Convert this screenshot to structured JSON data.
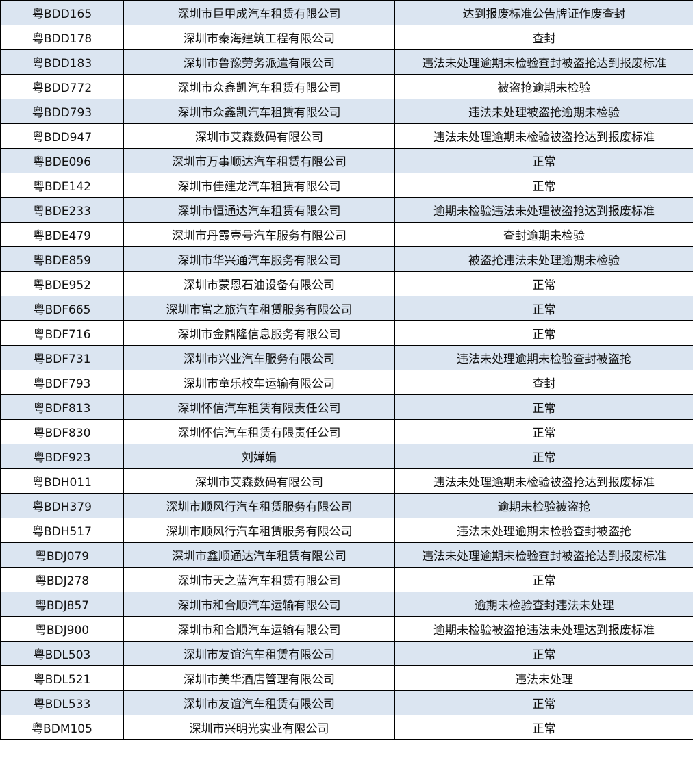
{
  "table": {
    "rows": [
      [
        "粤BDD165",
        "深圳市巨甲成汽车租赁有限公司",
        "达到报废标准公告牌证作废查封"
      ],
      [
        "粤BDD178",
        "深圳市秦海建筑工程有限公司",
        "查封"
      ],
      [
        "粤BDD183",
        "深圳市鲁豫劳务派遣有限公司",
        "违法未处理逾期未检验查封被盗抢达到报废标准"
      ],
      [
        "粤BDD772",
        "深圳市众鑫凯汽车租赁有限公司",
        "被盗抢逾期未检验"
      ],
      [
        "粤BDD793",
        "深圳市众鑫凯汽车租赁有限公司",
        "违法未处理被盗抢逾期未检验"
      ],
      [
        "粤BDD947",
        "深圳市艾森数码有限公司",
        "违法未处理逾期未检验被盗抢达到报废标准"
      ],
      [
        "粤BDE096",
        "深圳市万事顺达汽车租赁有限公司",
        "正常"
      ],
      [
        "粤BDE142",
        "深圳市佳建龙汽车租赁有限公司",
        "正常"
      ],
      [
        "粤BDE233",
        "深圳市恒通达汽车租赁有限公司",
        "逾期未检验违法未处理被盗抢达到报废标准"
      ],
      [
        "粤BDE479",
        "深圳市丹霞壹号汽车服务有限公司",
        "查封逾期未检验"
      ],
      [
        "粤BDE859",
        "深圳市华兴通汽车服务有限公司",
        "被盗抢违法未处理逾期未检验"
      ],
      [
        "粤BDE952",
        "深圳市蒙恩石油设备有限公司",
        "正常"
      ],
      [
        "粤BDF665",
        "深圳市富之旅汽车租赁服务有限公司",
        "正常"
      ],
      [
        "粤BDF716",
        "深圳市金鼎隆信息服务有限公司",
        "正常"
      ],
      [
        "粤BDF731",
        "深圳市兴业汽车服务有限公司",
        "违法未处理逾期未检验查封被盗抢"
      ],
      [
        "粤BDF793",
        "深圳市童乐校车运输有限公司",
        "查封"
      ],
      [
        "粤BDF813",
        "深圳怀信汽车租赁有限责任公司",
        "正常"
      ],
      [
        "粤BDF830",
        "深圳怀信汽车租赁有限责任公司",
        "正常"
      ],
      [
        "粤BDF923",
        "刘婵娟",
        "正常"
      ],
      [
        "粤BDH011",
        "深圳市艾森数码有限公司",
        "违法未处理逾期未检验被盗抢达到报废标准"
      ],
      [
        "粤BDH379",
        "深圳市顺风行汽车租赁服务有限公司",
        "逾期未检验被盗抢"
      ],
      [
        "粤BDH517",
        "深圳市顺风行汽车租赁服务有限公司",
        "违法未处理逾期未检验查封被盗抢"
      ],
      [
        "粤BDJ079",
        "深圳市鑫顺通达汽车租赁有限公司",
        "违法未处理逾期未检验查封被盗抢达到报废标准"
      ],
      [
        "粤BDJ278",
        "深圳市天之蓝汽车租赁有限公司",
        "正常"
      ],
      [
        "粤BDJ857",
        "深圳市和合顺汽车运输有限公司",
        "逾期未检验查封违法未处理"
      ],
      [
        "粤BDJ900",
        "深圳市和合顺汽车运输有限公司",
        "逾期未检验被盗抢违法未处理达到报废标准"
      ],
      [
        "粤BDL503",
        "深圳市友谊汽车租赁有限公司",
        "正常"
      ],
      [
        "粤BDL521",
        "深圳市美华酒店管理有限公司",
        "违法未处理"
      ],
      [
        "粤BDL533",
        "深圳市友谊汽车租赁有限公司",
        "正常"
      ],
      [
        "粤BDM105",
        "深圳市兴明光实业有限公司",
        "正常"
      ]
    ]
  }
}
